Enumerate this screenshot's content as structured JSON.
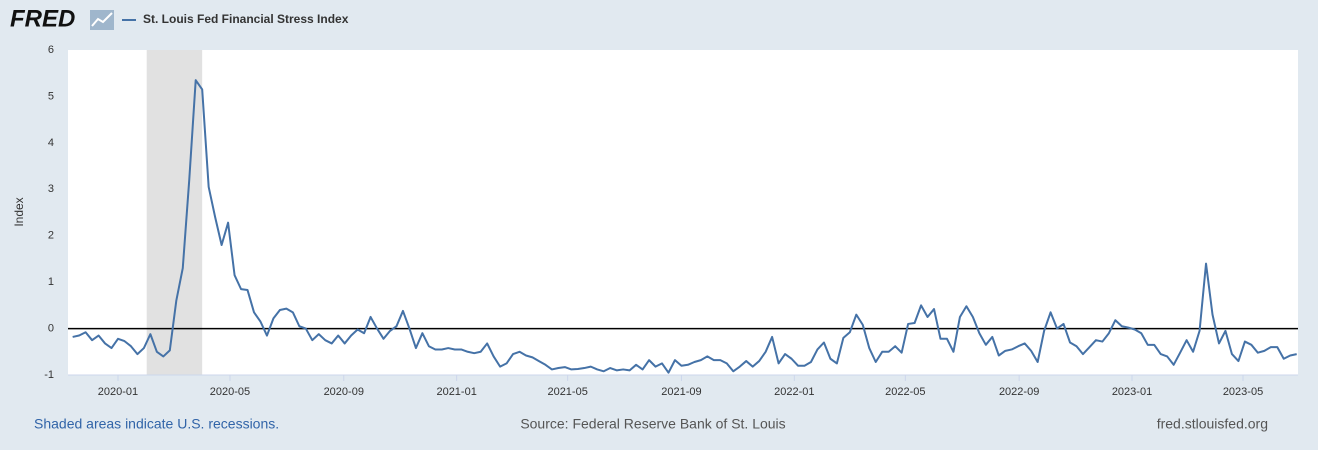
{
  "logo": "FRED",
  "footer": {
    "left": "Shaded areas indicate U.S. recessions.",
    "center": "Source: Federal Reserve Bank of St. Louis",
    "right": "fred.stlouisfed.org"
  },
  "chart_data": {
    "type": "line",
    "ylabel": "Index",
    "series": [
      {
        "name": "St. Louis Fed Financial Stress Index",
        "color": "#4572a7",
        "values": [
          -0.18,
          -0.15,
          -0.08,
          -0.25,
          -0.15,
          -0.32,
          -0.42,
          -0.22,
          -0.27,
          -0.38,
          -0.55,
          -0.42,
          -0.12,
          -0.5,
          -0.6,
          -0.47,
          0.6,
          1.3,
          3.2,
          5.35,
          5.15,
          3.05,
          2.4,
          1.8,
          2.28,
          1.15,
          0.85,
          0.83,
          0.35,
          0.15,
          -0.15,
          0.22,
          0.4,
          0.43,
          0.35,
          0.05,
          0.0,
          -0.25,
          -0.12,
          -0.25,
          -0.32,
          -0.15,
          -0.32,
          -0.15,
          -0.02,
          -0.1,
          0.25,
          0.0,
          -0.22,
          -0.05,
          0.05,
          0.38,
          0.0,
          -0.42,
          -0.1,
          -0.38,
          -0.45,
          -0.45,
          -0.42,
          -0.45,
          -0.45,
          -0.5,
          -0.53,
          -0.5,
          -0.32,
          -0.6,
          -0.82,
          -0.75,
          -0.55,
          -0.5,
          -0.58,
          -0.62,
          -0.7,
          -0.78,
          -0.88,
          -0.85,
          -0.83,
          -0.88,
          -0.87,
          -0.85,
          -0.82,
          -0.88,
          -0.92,
          -0.85,
          -0.9,
          -0.88,
          -0.9,
          -0.78,
          -0.88,
          -0.68,
          -0.82,
          -0.75,
          -0.95,
          -0.68,
          -0.8,
          -0.78,
          -0.72,
          -0.68,
          -0.6,
          -0.68,
          -0.68,
          -0.75,
          -0.92,
          -0.82,
          -0.7,
          -0.82,
          -0.7,
          -0.5,
          -0.18,
          -0.75,
          -0.55,
          -0.65,
          -0.8,
          -0.8,
          -0.72,
          -0.45,
          -0.3,
          -0.65,
          -0.75,
          -0.2,
          -0.08,
          0.3,
          0.08,
          -0.42,
          -0.72,
          -0.5,
          -0.5,
          -0.38,
          -0.52,
          0.1,
          0.12,
          0.5,
          0.25,
          0.42,
          -0.22,
          -0.22,
          -0.5,
          0.25,
          0.48,
          0.25,
          -0.1,
          -0.35,
          -0.18,
          -0.58,
          -0.48,
          -0.45,
          -0.38,
          -0.32,
          -0.48,
          -0.72,
          -0.05,
          0.35,
          0.0,
          0.1,
          -0.3,
          -0.38,
          -0.55,
          -0.4,
          -0.25,
          -0.28,
          -0.1,
          0.18,
          0.05,
          0.02,
          -0.02,
          -0.1,
          -0.35,
          -0.35,
          -0.55,
          -0.6,
          -0.78,
          -0.52,
          -0.25,
          -0.5,
          -0.05,
          1.4,
          0.3,
          -0.32,
          -0.05,
          -0.55,
          -0.7,
          -0.28,
          -0.35,
          -0.52,
          -0.48,
          -0.4,
          -0.4,
          -0.65,
          -0.58,
          -0.55
        ]
      }
    ],
    "x": [
      -7,
      -6,
      -5,
      -4,
      -3,
      -2,
      -1,
      0,
      1,
      2,
      3,
      4,
      5,
      6,
      7,
      8,
      9,
      10,
      11,
      12,
      13,
      14,
      15,
      16,
      17,
      18,
      19,
      20,
      21,
      22,
      23,
      24,
      25,
      26,
      27,
      28,
      29,
      30,
      31,
      32,
      33,
      34,
      35,
      36,
      37,
      38,
      39,
      40,
      41,
      42,
      43,
      44,
      45,
      46,
      47,
      48,
      49,
      50,
      51,
      52,
      53,
      54,
      55,
      56,
      57,
      58,
      59,
      60,
      61,
      62,
      63,
      64,
      65,
      66,
      67,
      68,
      69,
      70,
      71,
      72,
      73,
      74,
      75,
      76,
      77,
      78,
      79,
      80,
      81,
      82,
      83,
      84,
      85,
      86,
      87,
      88,
      89,
      90,
      91,
      92,
      93,
      94,
      95,
      96,
      97,
      98,
      99,
      100,
      101,
      102,
      103,
      104,
      105,
      106,
      107,
      108,
      109,
      110,
      111,
      112,
      113,
      114,
      115,
      116,
      117,
      118,
      119,
      120,
      121,
      122,
      123,
      124,
      125,
      126,
      127,
      128,
      129,
      130,
      131,
      132,
      133,
      134,
      135,
      136,
      137,
      138,
      139,
      140,
      141,
      142,
      143,
      144,
      145,
      146,
      147,
      148,
      149,
      150,
      151,
      152,
      153,
      154,
      155,
      156,
      157,
      158,
      159,
      160,
      161,
      162,
      163,
      164,
      165,
      166,
      167,
      168,
      169,
      170,
      171,
      172,
      173,
      174,
      175,
      176,
      177,
      178,
      179,
      180,
      181,
      182
    ],
    "xlim": [
      -7.72,
      182.2
    ],
    "xticks": [
      {
        "value": 0,
        "label": "2020-01"
      },
      {
        "value": 17.29,
        "label": "2020-05"
      },
      {
        "value": 34.86,
        "label": "2020-09"
      },
      {
        "value": 52.29,
        "label": "2021-01"
      },
      {
        "value": 69.43,
        "label": "2021-05"
      },
      {
        "value": 87,
        "label": "2021-09"
      },
      {
        "value": 104.43,
        "label": "2022-01"
      },
      {
        "value": 121.57,
        "label": "2022-05"
      },
      {
        "value": 139.14,
        "label": "2022-09"
      },
      {
        "value": 156.57,
        "label": "2023-01"
      },
      {
        "value": 173.71,
        "label": "2023-05"
      }
    ],
    "ylim": [
      -1,
      6
    ],
    "yticks": [
      -1,
      0,
      1,
      2,
      3,
      4,
      5,
      6
    ],
    "recessions": [
      {
        "start": 4.43,
        "end": 13
      }
    ],
    "recession_color": "#e1e1e1",
    "grid": false
  }
}
